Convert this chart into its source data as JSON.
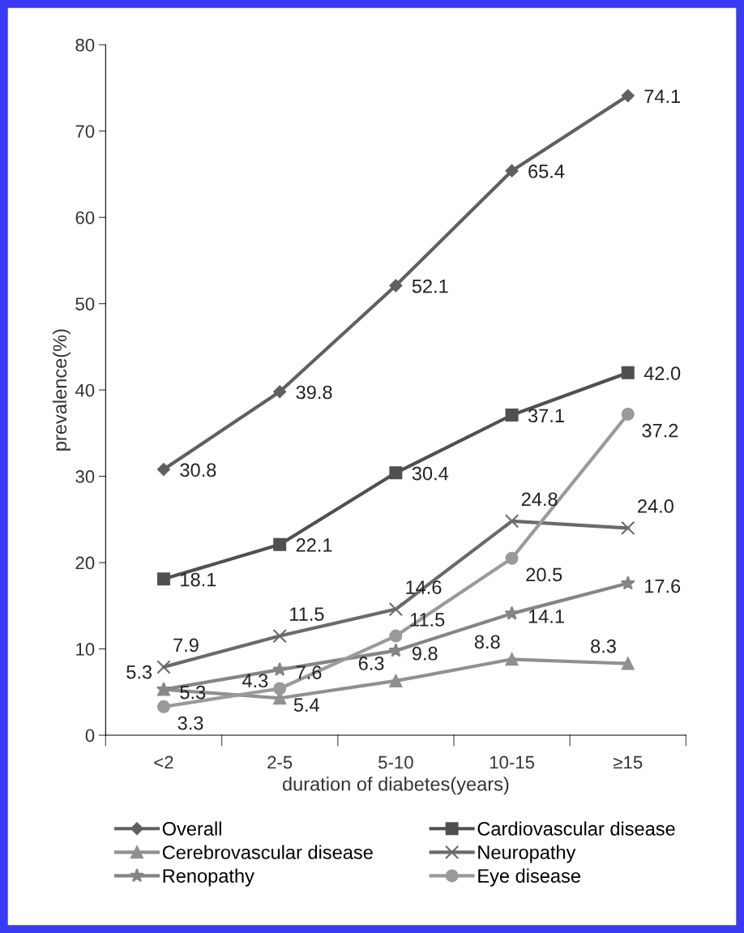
{
  "chart_data": {
    "type": "line",
    "xlabel": "duration of diabetes(years)",
    "ylabel": "prevalence(%)",
    "categories": [
      "<2",
      "2-5",
      "5-10",
      "10-15",
      "≥15"
    ],
    "ylim": [
      0,
      80
    ],
    "yticks": [
      0,
      10,
      20,
      30,
      40,
      50,
      60,
      70,
      80
    ],
    "grid": false,
    "legend": "bottom",
    "series": [
      {
        "name": "Overall",
        "color": "#606060",
        "marker": "diamond",
        "values": [
          30.8,
          39.8,
          52.1,
          65.4,
          74.1
        ],
        "value_labels": [
          "30.8",
          "39.8",
          "52.1",
          "65.4",
          "74.1"
        ]
      },
      {
        "name": "Cardiovascular disease",
        "color": "#505050",
        "marker": "square",
        "values": [
          18.1,
          22.1,
          30.4,
          37.1,
          42.0
        ],
        "value_labels": [
          "18.1",
          "22.1",
          "30.4",
          "37.1",
          "42.0"
        ]
      },
      {
        "name": "Cerebrovascular disease",
        "color": "#909090",
        "marker": "triangle",
        "values": [
          5.3,
          4.3,
          6.3,
          8.8,
          8.3
        ],
        "value_labels": [
          "5.3",
          "4.3",
          "6.3",
          "8.8",
          "8.3"
        ]
      },
      {
        "name": "Neuropathy",
        "color": "#6a6a6a",
        "marker": "cross",
        "values": [
          7.9,
          11.5,
          14.6,
          24.8,
          24.0
        ],
        "value_labels": [
          "7.9",
          "11.5",
          "14.6",
          "24.8",
          "24.0"
        ]
      },
      {
        "name": "Renopathy",
        "color": "#858585",
        "marker": "star",
        "values": [
          5.3,
          7.6,
          9.8,
          14.1,
          17.6
        ],
        "value_labels": [
          "5.3",
          "7.6",
          "9.8",
          "14.1",
          "17.6"
        ]
      },
      {
        "name": "Eye disease",
        "color": "#9a9a9a",
        "marker": "circle",
        "values": [
          3.3,
          5.4,
          11.5,
          20.5,
          37.2
        ],
        "value_labels": [
          "3.3",
          "5.4",
          "11.5",
          "20.5",
          "37.2"
        ]
      }
    ]
  }
}
